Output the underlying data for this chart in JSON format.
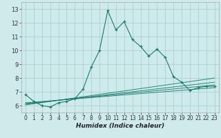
{
  "xlabel": "Humidex (Indice chaleur)",
  "bg_color": "#ceeaea",
  "grid_color": "#aed0d0",
  "line_color": "#1a7a6e",
  "xlim": [
    -0.5,
    23.5
  ],
  "ylim": [
    5.5,
    13.5
  ],
  "xticks": [
    0,
    1,
    2,
    3,
    4,
    5,
    6,
    7,
    8,
    9,
    10,
    11,
    12,
    13,
    14,
    15,
    16,
    17,
    18,
    19,
    20,
    21,
    22,
    23
  ],
  "yticks": [
    6,
    7,
    8,
    9,
    10,
    11,
    12,
    13
  ],
  "main_x": [
    0,
    1,
    2,
    3,
    4,
    5,
    6,
    7,
    8,
    9,
    10,
    11,
    12,
    13,
    14,
    15,
    16,
    17,
    18,
    19,
    20,
    21,
    22,
    23
  ],
  "main_y": [
    6.8,
    6.3,
    6.0,
    5.9,
    6.2,
    6.3,
    6.5,
    7.2,
    8.8,
    10.0,
    12.9,
    11.5,
    12.1,
    10.8,
    10.3,
    9.6,
    10.1,
    9.5,
    8.1,
    7.7,
    7.1,
    7.3,
    7.4,
    7.4
  ],
  "linear_lines": [
    {
      "x": [
        0,
        23
      ],
      "y": [
        6.05,
        8.0
      ]
    },
    {
      "x": [
        0,
        23
      ],
      "y": [
        6.1,
        7.7
      ]
    },
    {
      "x": [
        0,
        23
      ],
      "y": [
        6.15,
        7.5
      ]
    },
    {
      "x": [
        0,
        23
      ],
      "y": [
        6.2,
        7.3
      ]
    }
  ]
}
